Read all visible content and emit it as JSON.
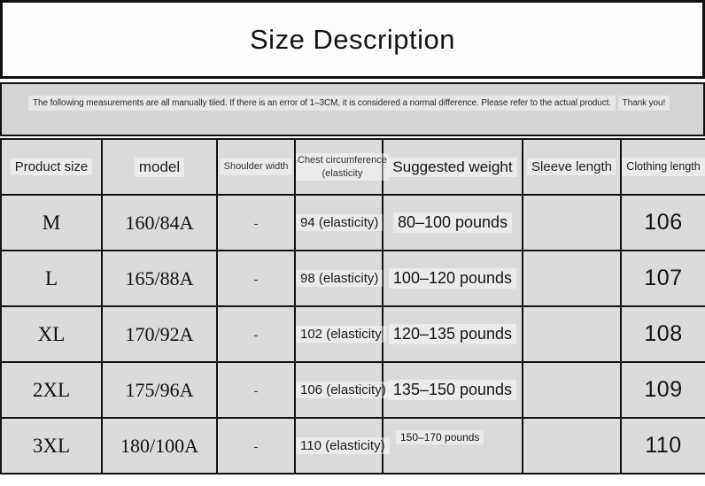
{
  "title": "Size Description",
  "note": {
    "line1": "The following measurements are all manually tiled. If there is an error of 1–3CM, it is considered a normal difference. Please refer to the actual product.",
    "line2": "Thank you!"
  },
  "table": {
    "columns": [
      {
        "key": "size",
        "label": "Product size"
      },
      {
        "key": "model",
        "label": "model"
      },
      {
        "key": "shoulder",
        "label": "Shoulder width"
      },
      {
        "key": "chest",
        "label": "Chest circumference",
        "label2": "(elasticity"
      },
      {
        "key": "weight",
        "label": "Suggested weight"
      },
      {
        "key": "sleeve",
        "label": "Sleeve length"
      },
      {
        "key": "clothing",
        "label": "Clothing length"
      }
    ],
    "rows": [
      {
        "size": "M",
        "model": "160/84A",
        "shoulder": "-",
        "chest": "94 (elasticity)",
        "weight": "80–100 pounds",
        "sleeve": "",
        "clothing": "106"
      },
      {
        "size": "L",
        "model": "165/88A",
        "shoulder": "-",
        "chest": "98 (elasticity)",
        "weight": "100–120 pounds",
        "sleeve": "",
        "clothing": "107"
      },
      {
        "size": "XL",
        "model": "170/92A",
        "shoulder": "-",
        "chest": "102 (elasticity",
        "weight": "120–135 pounds",
        "sleeve": "",
        "clothing": "108"
      },
      {
        "size": "2XL",
        "model": "175/96A",
        "shoulder": "-",
        "chest": "106 (elasticity)",
        "weight": "135–150 pounds",
        "sleeve": "",
        "clothing": "109"
      },
      {
        "size": "3XL",
        "model": "180/100A",
        "shoulder": "-",
        "chest": "110 (elasticity)",
        "weight": "150–170 pounds",
        "sleeve": "",
        "clothing": "110"
      }
    ]
  },
  "colors": {
    "cell_bg": "#dbdbdb",
    "note_bg": "#d4d4d4",
    "title_bg": "#fdfdfd",
    "border": "#121212"
  }
}
